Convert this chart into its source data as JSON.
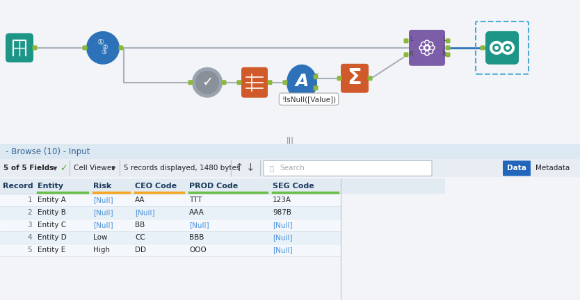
{
  "workflow_bg": "#f2f4f7",
  "browse_label": "- Browse (10) - Input",
  "records_label": "5 records displayed, 1480 bytes",
  "table_headers": [
    "Record",
    "Entity",
    "Risk",
    "CEO Code",
    "PROD Code",
    "SEG Code"
  ],
  "header_underline_colors": [
    "none",
    "#6abf4b",
    "#f5a623",
    "#f5a623",
    "#6abf4b",
    "#6abf4b"
  ],
  "rows": [
    [
      "1",
      "Entity A",
      "[Null]",
      "AA",
      "TTT",
      "123A"
    ],
    [
      "2",
      "Entity B",
      "[Null]",
      "[Null]",
      "AAA",
      "987B"
    ],
    [
      "3",
      "Entity C",
      "[Null]",
      "BB",
      "[Null]",
      "[Null]"
    ],
    [
      "4",
      "Entity D",
      "Low",
      "CC",
      "BBB",
      "[Null]"
    ],
    [
      "5",
      "Entity E",
      "High",
      "DD",
      "OOO",
      "[Null]"
    ]
  ],
  "null_color": "#4a90d9",
  "normal_text_color": "#222222",
  "join_color": "#7b5ea7",
  "teal_color": "#1d9688",
  "blue_color": "#2d72b8",
  "orange_color": "#d05a2a",
  "gray_color": "#8a9099",
  "green_dot": "#8ab83a",
  "formula_label": "!IsNull([Value])"
}
